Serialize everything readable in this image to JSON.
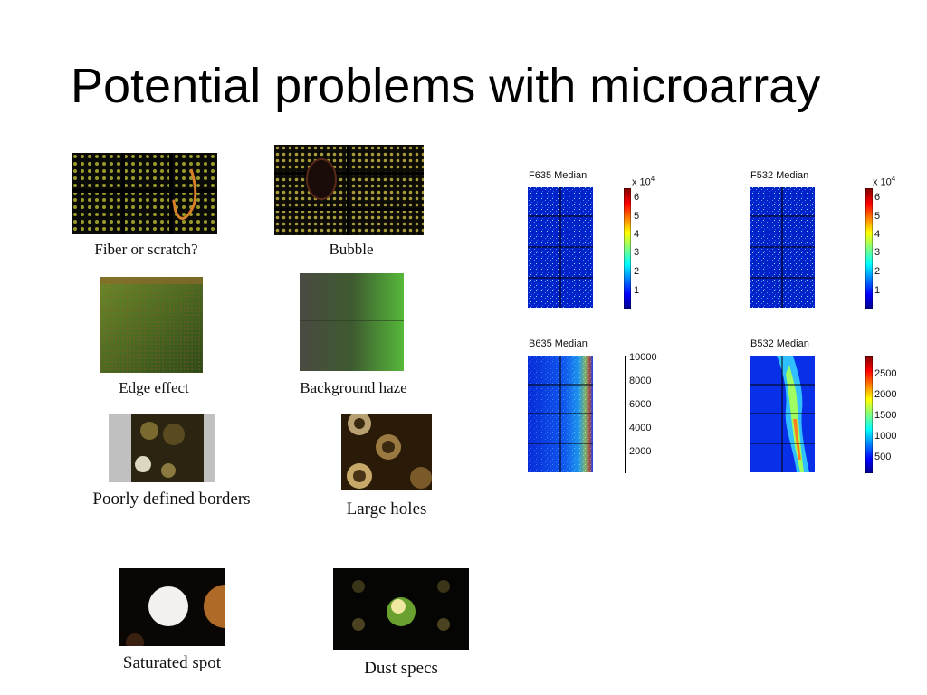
{
  "slide": {
    "title": "Potential problems with microarray"
  },
  "examples": [
    {
      "id": "fiber",
      "caption": "Fiber or scratch?"
    },
    {
      "id": "bubble",
      "caption": "Bubble"
    },
    {
      "id": "edge",
      "caption": "Edge effect"
    },
    {
      "id": "haze",
      "caption": "Background haze"
    },
    {
      "id": "borders",
      "caption": "Poorly defined borders"
    },
    {
      "id": "holes",
      "caption": "Large holes"
    },
    {
      "id": "saturated",
      "caption": "Saturated spot"
    },
    {
      "id": "dust",
      "caption": "Dust specs"
    }
  ],
  "plots": [
    {
      "id": "f635",
      "title": "F635 Median",
      "multiplier": "x 10",
      "exponent": "4",
      "ticks": [
        "6",
        "5",
        "4",
        "3",
        "2",
        "1"
      ]
    },
    {
      "id": "f532",
      "title": "F532 Median",
      "multiplier": "x 10",
      "exponent": "4",
      "ticks": [
        "6",
        "5",
        "4",
        "3",
        "2",
        "1"
      ]
    },
    {
      "id": "b635",
      "title": "B635 Median",
      "ticks": [
        "10000",
        "8000",
        "6000",
        "4000",
        "2000"
      ]
    },
    {
      "id": "b532",
      "title": "B532 Median",
      "ticks": [
        "2500",
        "2000",
        "1500",
        "1000",
        "500"
      ]
    }
  ],
  "colors": {
    "jet_low": "#00008f",
    "jet_high": "#800000"
  }
}
